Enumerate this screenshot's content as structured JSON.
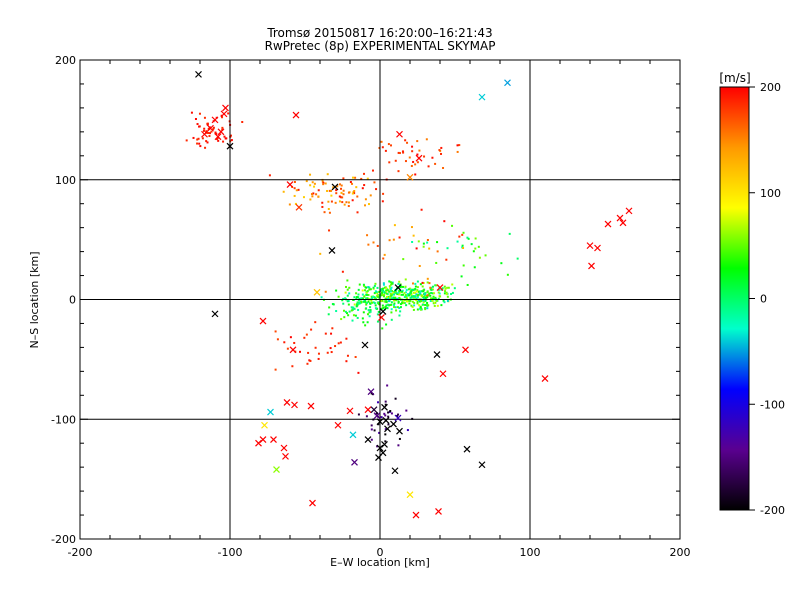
{
  "chart_data": {
    "type": "scatter",
    "title": "Tromsø 20150817 16:20:00–16:21:43",
    "subtitle": "RwPretec (8p) EXPERIMENTAL SKYMAP",
    "xlabel": "E–W location [km]",
    "ylabel": "N–S location [km]",
    "xlim": [
      -200,
      200
    ],
    "ylim": [
      -200,
      200
    ],
    "x_ticks": [
      -200,
      -100,
      0,
      100,
      200
    ],
    "y_ticks": [
      -200,
      -100,
      0,
      100,
      200
    ],
    "grid_lines": [
      -100,
      0,
      100
    ],
    "colorbar": {
      "label": "[m/s]",
      "range": [
        -200,
        200
      ],
      "ticks": [
        200,
        100,
        0,
        -100,
        -200
      ],
      "colors": [
        "#ff0000",
        "#ff9900",
        "#ffff00",
        "#00ff00",
        "#00ffcc",
        "#0000ff",
        "#5a0090",
        "#000000"
      ]
    },
    "markers_x": [
      {
        "x": 85,
        "y": 181,
        "v": -50
      },
      {
        "x": 68,
        "y": 169,
        "v": -40
      },
      {
        "x": -113,
        "y": 143,
        "v": 200
      },
      {
        "x": -110,
        "y": 150,
        "v": 200
      },
      {
        "x": -106,
        "y": 140,
        "v": 200
      },
      {
        "x": -104,
        "y": 155,
        "v": 200
      },
      {
        "x": -108,
        "y": 136,
        "v": 200
      },
      {
        "x": -103,
        "y": 160,
        "v": 200
      },
      {
        "x": -100,
        "y": 128,
        "v": -200
      },
      {
        "x": -117,
        "y": 138,
        "v": 200
      },
      {
        "x": -56,
        "y": 154,
        "v": 200
      },
      {
        "x": 13,
        "y": 138,
        "v": 200
      },
      {
        "x": 26,
        "y": 118,
        "v": 200
      },
      {
        "x": 20,
        "y": 102,
        "v": 150
      },
      {
        "x": -60,
        "y": 96,
        "v": 200
      },
      {
        "x": -30,
        "y": 94,
        "v": -200
      },
      {
        "x": -54,
        "y": 77,
        "v": 180
      },
      {
        "x": 166,
        "y": 74,
        "v": 200
      },
      {
        "x": 162,
        "y": 64,
        "v": 200
      },
      {
        "x": 152,
        "y": 63,
        "v": 200
      },
      {
        "x": 160,
        "y": 68,
        "v": 200
      },
      {
        "x": 140,
        "y": 45,
        "v": 200
      },
      {
        "x": 145,
        "y": 43,
        "v": 200
      },
      {
        "x": 141,
        "y": 28,
        "v": 200
      },
      {
        "x": -32,
        "y": 41,
        "v": -200
      },
      {
        "x": -42,
        "y": 6,
        "v": 120
      },
      {
        "x": -110,
        "y": -12,
        "v": -200
      },
      {
        "x": -78,
        "y": -18,
        "v": 200
      },
      {
        "x": 12,
        "y": 10,
        "v": -200
      },
      {
        "x": 40,
        "y": 10,
        "v": 200
      },
      {
        "x": 2,
        "y": -10,
        "v": -200
      },
      {
        "x": 1,
        "y": -15,
        "v": 200
      },
      {
        "x": -10,
        "y": -38,
        "v": -200
      },
      {
        "x": -58,
        "y": -42,
        "v": 200
      },
      {
        "x": 38,
        "y": -46,
        "v": -200
      },
      {
        "x": 57,
        "y": -42,
        "v": 200
      },
      {
        "x": 42,
        "y": -62,
        "v": 200
      },
      {
        "x": 110,
        "y": -66,
        "v": 200
      },
      {
        "x": -62,
        "y": -86,
        "v": 200
      },
      {
        "x": -57,
        "y": -88,
        "v": 200
      },
      {
        "x": -46,
        "y": -89,
        "v": 200
      },
      {
        "x": -73,
        "y": -94,
        "v": -40
      },
      {
        "x": -20,
        "y": -93,
        "v": 200
      },
      {
        "x": -8,
        "y": -92,
        "v": 200
      },
      {
        "x": -6,
        "y": -77,
        "v": -150
      },
      {
        "x": -4,
        "y": -92,
        "v": -180
      },
      {
        "x": 3,
        "y": -90,
        "v": -200
      },
      {
        "x": -2,
        "y": -97,
        "v": -150
      },
      {
        "x": 0,
        "y": -102,
        "v": -200
      },
      {
        "x": 4,
        "y": -101,
        "v": -200
      },
      {
        "x": 9,
        "y": -104,
        "v": -200
      },
      {
        "x": 12,
        "y": -99,
        "v": -120
      },
      {
        "x": 5,
        "y": -108,
        "v": -200
      },
      {
        "x": -28,
        "y": -105,
        "v": 200
      },
      {
        "x": -18,
        "y": -113,
        "v": -40
      },
      {
        "x": -8,
        "y": -117,
        "v": -200
      },
      {
        "x": 13,
        "y": -110,
        "v": -200
      },
      {
        "x": -77,
        "y": -105,
        "v": 100
      },
      {
        "x": -78,
        "y": -117,
        "v": 200
      },
      {
        "x": -81,
        "y": -120,
        "v": 200
      },
      {
        "x": -71,
        "y": -117,
        "v": 200
      },
      {
        "x": -64,
        "y": -124,
        "v": 200
      },
      {
        "x": -63,
        "y": -131,
        "v": 200
      },
      {
        "x": 0,
        "y": -124,
        "v": -200
      },
      {
        "x": 2,
        "y": -128,
        "v": -200
      },
      {
        "x": -1,
        "y": -132,
        "v": -200
      },
      {
        "x": 3,
        "y": -121,
        "v": -200
      },
      {
        "x": 58,
        "y": -125,
        "v": -200
      },
      {
        "x": 68,
        "y": -138,
        "v": -200
      },
      {
        "x": -17,
        "y": -136,
        "v": -150
      },
      {
        "x": 10,
        "y": -143,
        "v": -200
      },
      {
        "x": -69,
        "y": -142,
        "v": 60
      },
      {
        "x": 20,
        "y": -163,
        "v": 100
      },
      {
        "x": -45,
        "y": -170,
        "v": 200
      },
      {
        "x": 24,
        "y": -180,
        "v": 200
      },
      {
        "x": 39,
        "y": -177,
        "v": 200
      },
      {
        "x": -121,
        "y": 188,
        "v": -200
      }
    ]
  }
}
